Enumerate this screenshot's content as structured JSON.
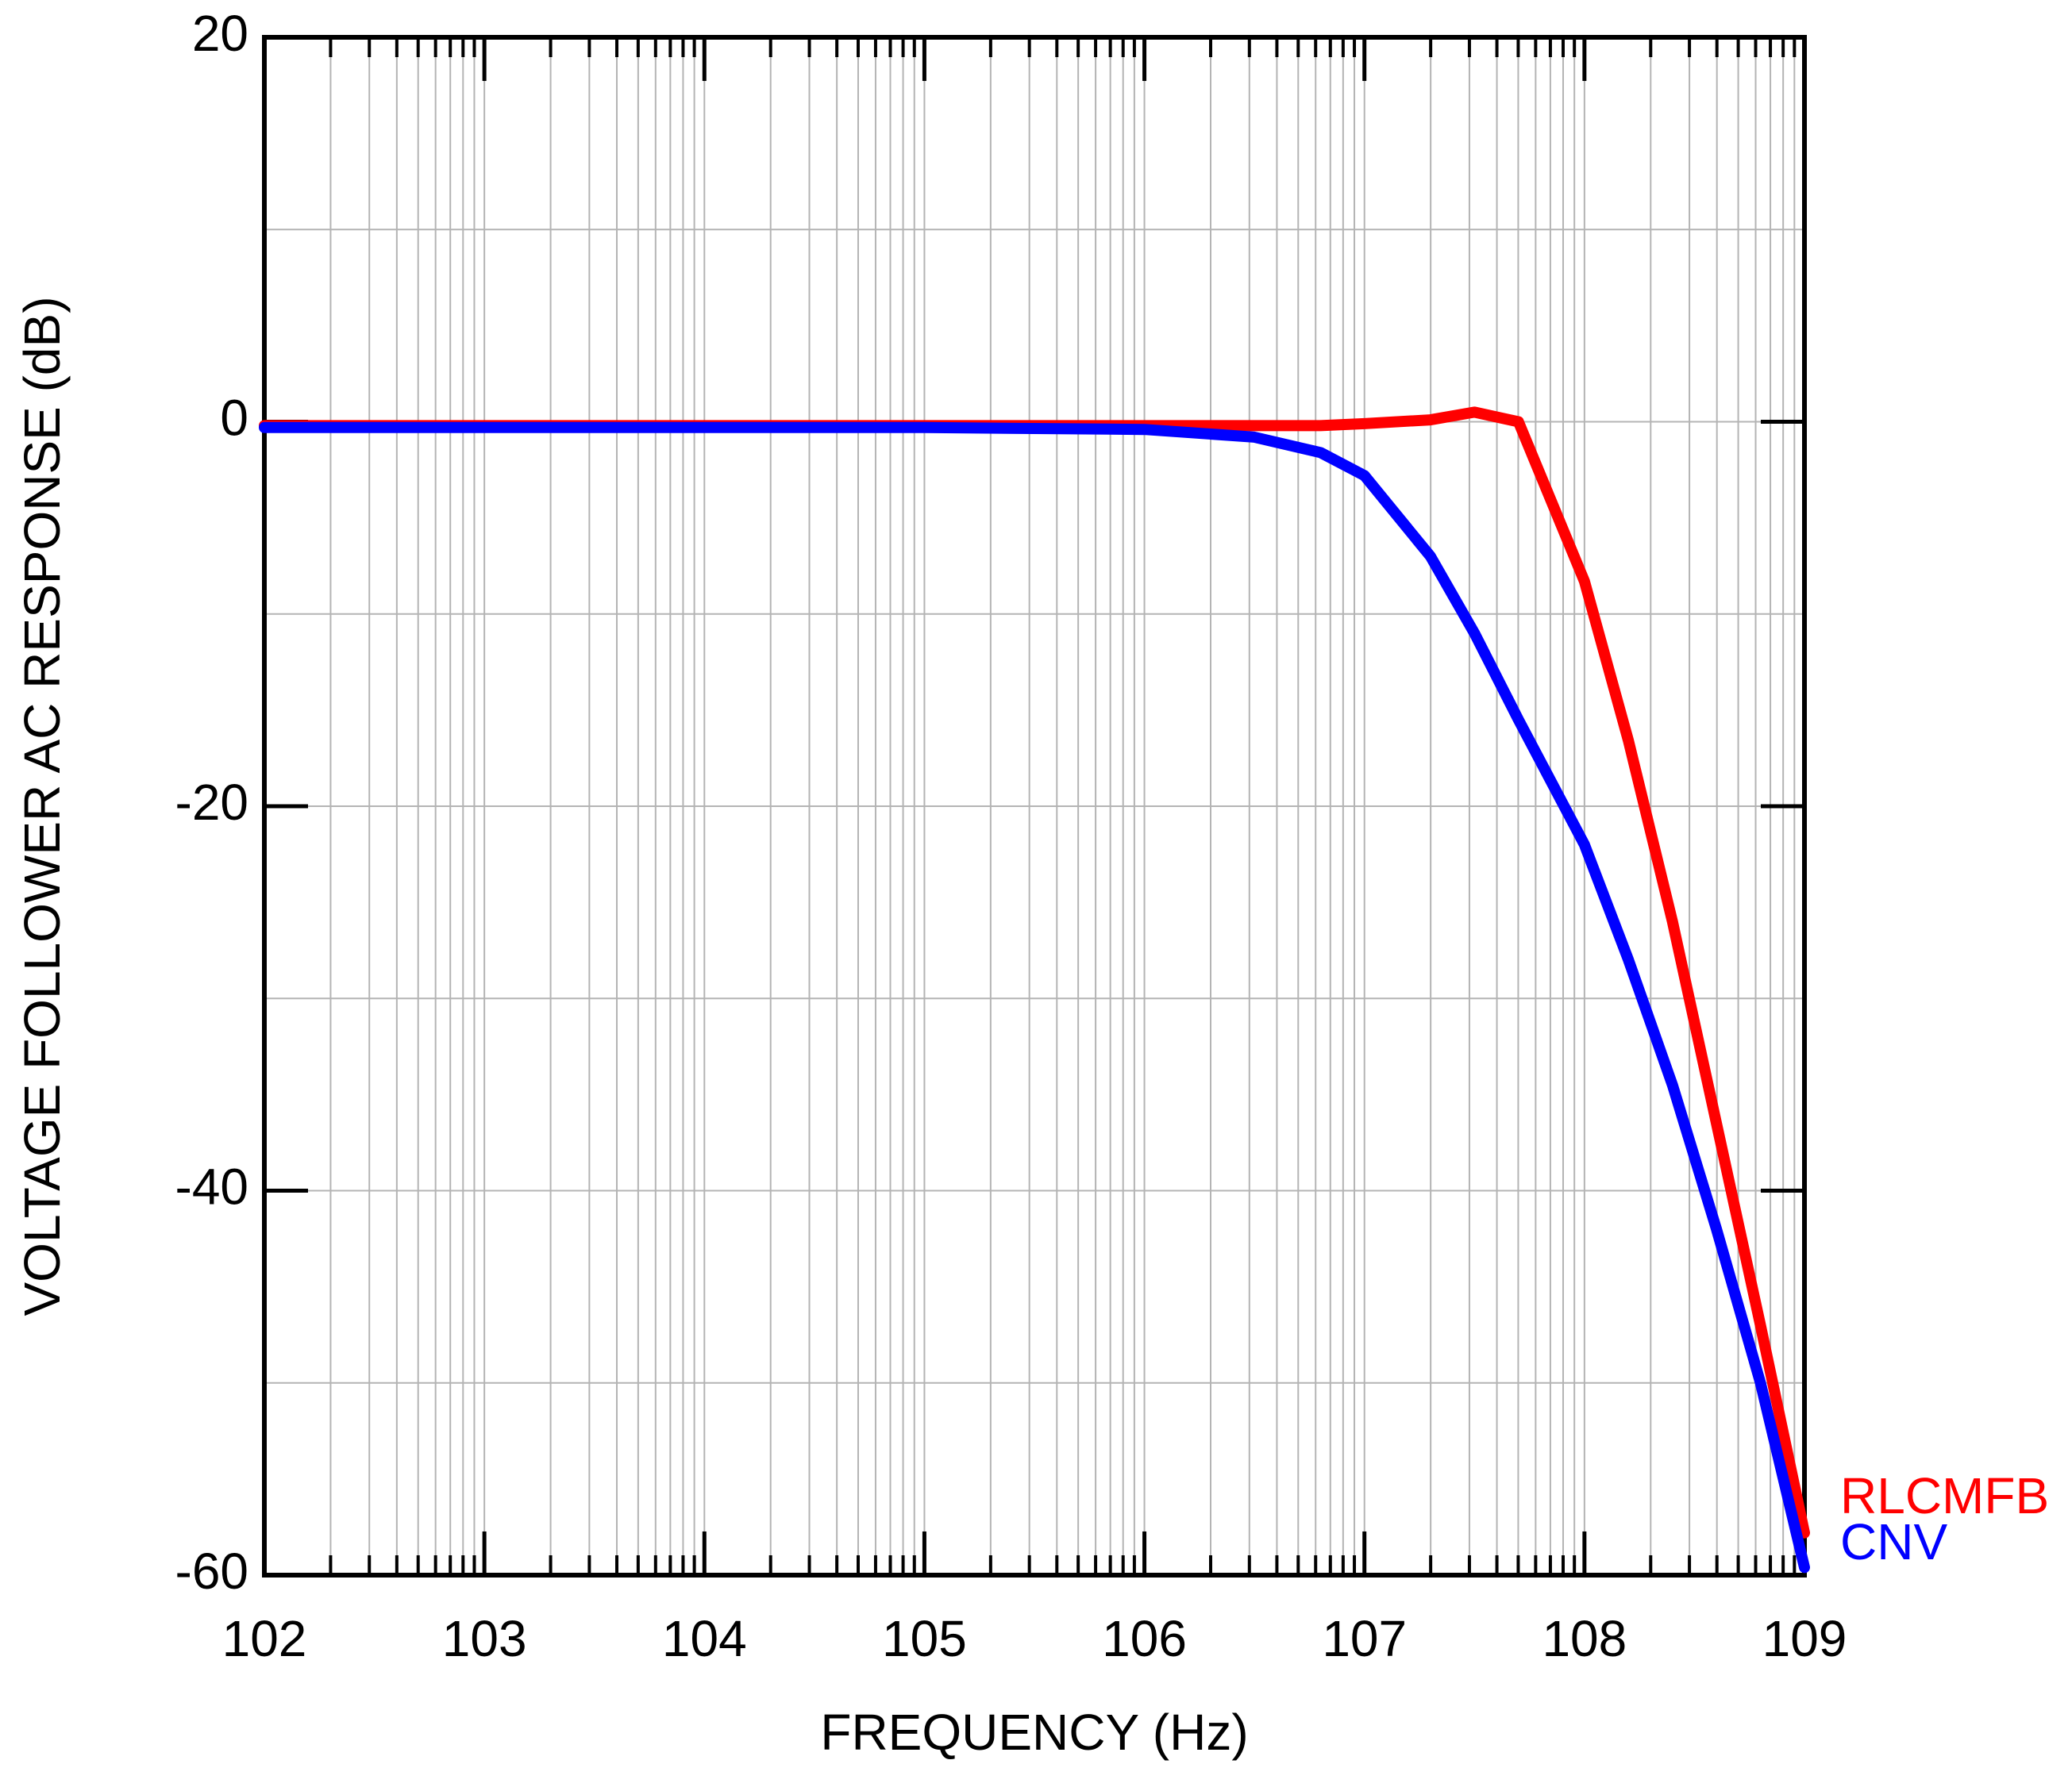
{
  "chart_data": {
    "type": "line",
    "x_label": "FREQUENCY  (Hz)",
    "y_label": "VOLTAGE FOLLOWER AC RESPONSE  (dB)",
    "x_log": true,
    "grid": true,
    "x": [
      100,
      1000,
      10000,
      100000,
      1000000,
      3162278,
      6309573,
      10000000,
      19952623,
      31622777,
      50118723,
      100000000,
      158489319,
      251188643,
      398107171,
      630957344,
      1000000000
    ],
    "series": [
      {
        "name": "RLCMFB",
        "color": "#ff0000",
        "values": [
          -0.2,
          -0.2,
          -0.2,
          -0.2,
          -0.2,
          -0.2,
          -0.2,
          -0.1,
          0.1,
          0.5,
          0,
          -8.3,
          -16.6,
          -26,
          -36.5,
          -47,
          -57.8
        ]
      },
      {
        "name": "CNV",
        "color": "#0000ff",
        "values": [
          -0.3,
          -0.3,
          -0.3,
          -0.3,
          -0.4,
          -0.8,
          -1.6,
          -2.8,
          -7,
          -11,
          -15.5,
          -22,
          -28,
          -34.5,
          -42,
          -50,
          -59.6
        ]
      }
    ],
    "xlim": [
      100,
      1000000000
    ],
    "xticks": [
      {
        "value": 100,
        "label": "102"
      },
      {
        "value": 1000,
        "label": "103"
      },
      {
        "value": 10000,
        "label": "104"
      },
      {
        "value": 100000,
        "label": "105"
      },
      {
        "value": 1000000,
        "label": "106"
      },
      {
        "value": 10000000,
        "label": "107"
      },
      {
        "value": 100000000,
        "label": "108"
      },
      {
        "value": 1000000000,
        "label": "109"
      }
    ],
    "ylim": [
      -60,
      20
    ],
    "yticks": [
      20,
      0,
      -20,
      -40,
      -60
    ],
    "y_minor_grid": [
      10,
      -10,
      -30,
      -50
    ]
  }
}
